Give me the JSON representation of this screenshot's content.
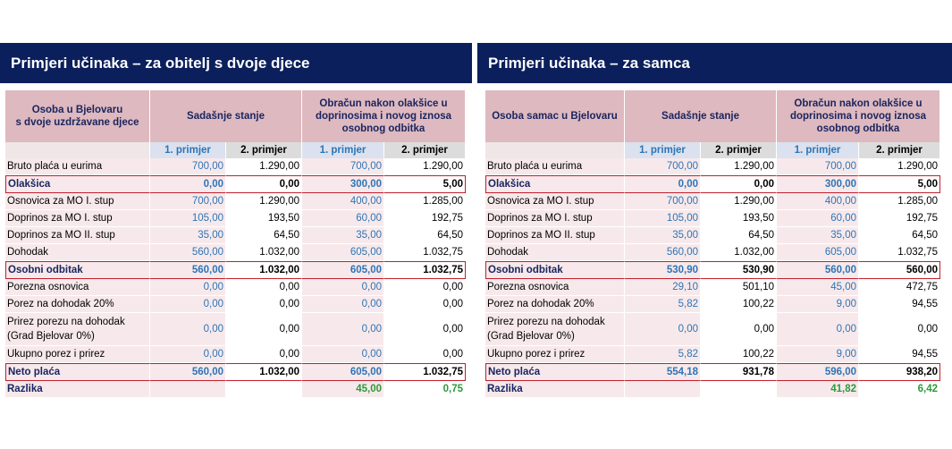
{
  "left": {
    "title": "Primjeri učinaka – za obitelj s dvoje djece",
    "header": {
      "col0": "Osoba u Bjelovaru\ns dvoje uzdržavane djece",
      "current": "Sadašnje stanje",
      "after": "Obračun nakon olakšice u doprinosima i novog iznosa osobnog odbitka",
      "ex1": "1. primjer",
      "ex2": "2. primjer"
    },
    "rows": [
      {
        "label": "Bruto plaća u eurima",
        "v": [
          "700,00",
          "1.290,00",
          "700,00",
          "1.290,00"
        ]
      },
      {
        "label": "Olakšica",
        "v": [
          "0,00",
          "0,00",
          "300,00",
          "5,00"
        ]
      },
      {
        "label": "Osnovica za MO I. stup",
        "v": [
          "700,00",
          "1.290,00",
          "400,00",
          "1.285,00"
        ]
      },
      {
        "label": "Doprinos za MO I. stup",
        "v": [
          "105,00",
          "193,50",
          "60,00",
          "192,75"
        ]
      },
      {
        "label": "Doprinos za MO II. stup",
        "v": [
          "35,00",
          "64,50",
          "35,00",
          "64,50"
        ]
      },
      {
        "label": "Dohodak",
        "v": [
          "560,00",
          "1.032,00",
          "605,00",
          "1.032,75"
        ]
      },
      {
        "label": "Osobni odbitak",
        "v": [
          "560,00",
          "1.032,00",
          "605,00",
          "1.032,75"
        ]
      },
      {
        "label": "Porezna osnovica",
        "v": [
          "0,00",
          "0,00",
          "0,00",
          "0,00"
        ]
      },
      {
        "label": "Porez na dohodak 20%",
        "v": [
          "0,00",
          "0,00",
          "0,00",
          "0,00"
        ]
      },
      {
        "label": "Prirez porezu na dohodak (Grad Bjelovar 0%)",
        "v": [
          "0,00",
          "0,00",
          "0,00",
          "0,00"
        ]
      },
      {
        "label": "Ukupno porez i prirez",
        "v": [
          "0,00",
          "0,00",
          "0,00",
          "0,00"
        ]
      },
      {
        "label": "Neto plaća",
        "v": [
          "560,00",
          "1.032,00",
          "605,00",
          "1.032,75"
        ]
      },
      {
        "label": "Razlika",
        "v": [
          "",
          "",
          "45,00",
          "0,75"
        ]
      }
    ]
  },
  "right": {
    "title": "Primjeri učinaka – za samca",
    "header": {
      "col0": "Osoba samac u Bjelovaru",
      "current": "Sadašnje stanje",
      "after": "Obračun nakon olakšice u doprinosima i novog iznosa osobnog odbitka",
      "ex1": "1. primjer",
      "ex2": "2. primjer"
    },
    "rows": [
      {
        "label": "Bruto plaća u eurima",
        "v": [
          "700,00",
          "1.290,00",
          "700,00",
          "1.290,00"
        ]
      },
      {
        "label": "Olakšica",
        "v": [
          "0,00",
          "0,00",
          "300,00",
          "5,00"
        ]
      },
      {
        "label": "Osnovica za MO I. stup",
        "v": [
          "700,00",
          "1.290,00",
          "400,00",
          "1.285,00"
        ]
      },
      {
        "label": "Doprinos za MO I. stup",
        "v": [
          "105,00",
          "193,50",
          "60,00",
          "192,75"
        ]
      },
      {
        "label": "Doprinos za MO II. stup",
        "v": [
          "35,00",
          "64,50",
          "35,00",
          "64,50"
        ]
      },
      {
        "label": "Dohodak",
        "v": [
          "560,00",
          "1.032,00",
          "605,00",
          "1.032,75"
        ]
      },
      {
        "label": "Osobni odbitak",
        "v": [
          "530,90",
          "530,90",
          "560,00",
          "560,00"
        ]
      },
      {
        "label": "Porezna osnovica",
        "v": [
          "29,10",
          "501,10",
          "45,00",
          "472,75"
        ]
      },
      {
        "label": "Porez na dohodak 20%",
        "v": [
          "5,82",
          "100,22",
          "9,00",
          "94,55"
        ]
      },
      {
        "label": "Prirez porezu na dohodak (Grad Bjelovar 0%)",
        "v": [
          "0,00",
          "0,00",
          "0,00",
          "0,00"
        ]
      },
      {
        "label": "Ukupno porez i prirez",
        "v": [
          "5,82",
          "100,22",
          "9,00",
          "94,55"
        ]
      },
      {
        "label": "Neto plaća",
        "v": [
          "554,18",
          "931,78",
          "596,00",
          "938,20"
        ]
      },
      {
        "label": "Razlika",
        "v": [
          "",
          "",
          "41,82",
          "6,42"
        ]
      }
    ]
  },
  "colors": {
    "banner": "#0b1f5c",
    "header": "#deb9bf",
    "row_tint": "#f7e9eb",
    "blue_value": "#2e74b5",
    "green_value": "#2e9a3a",
    "highlight_border": "#c0202c"
  }
}
